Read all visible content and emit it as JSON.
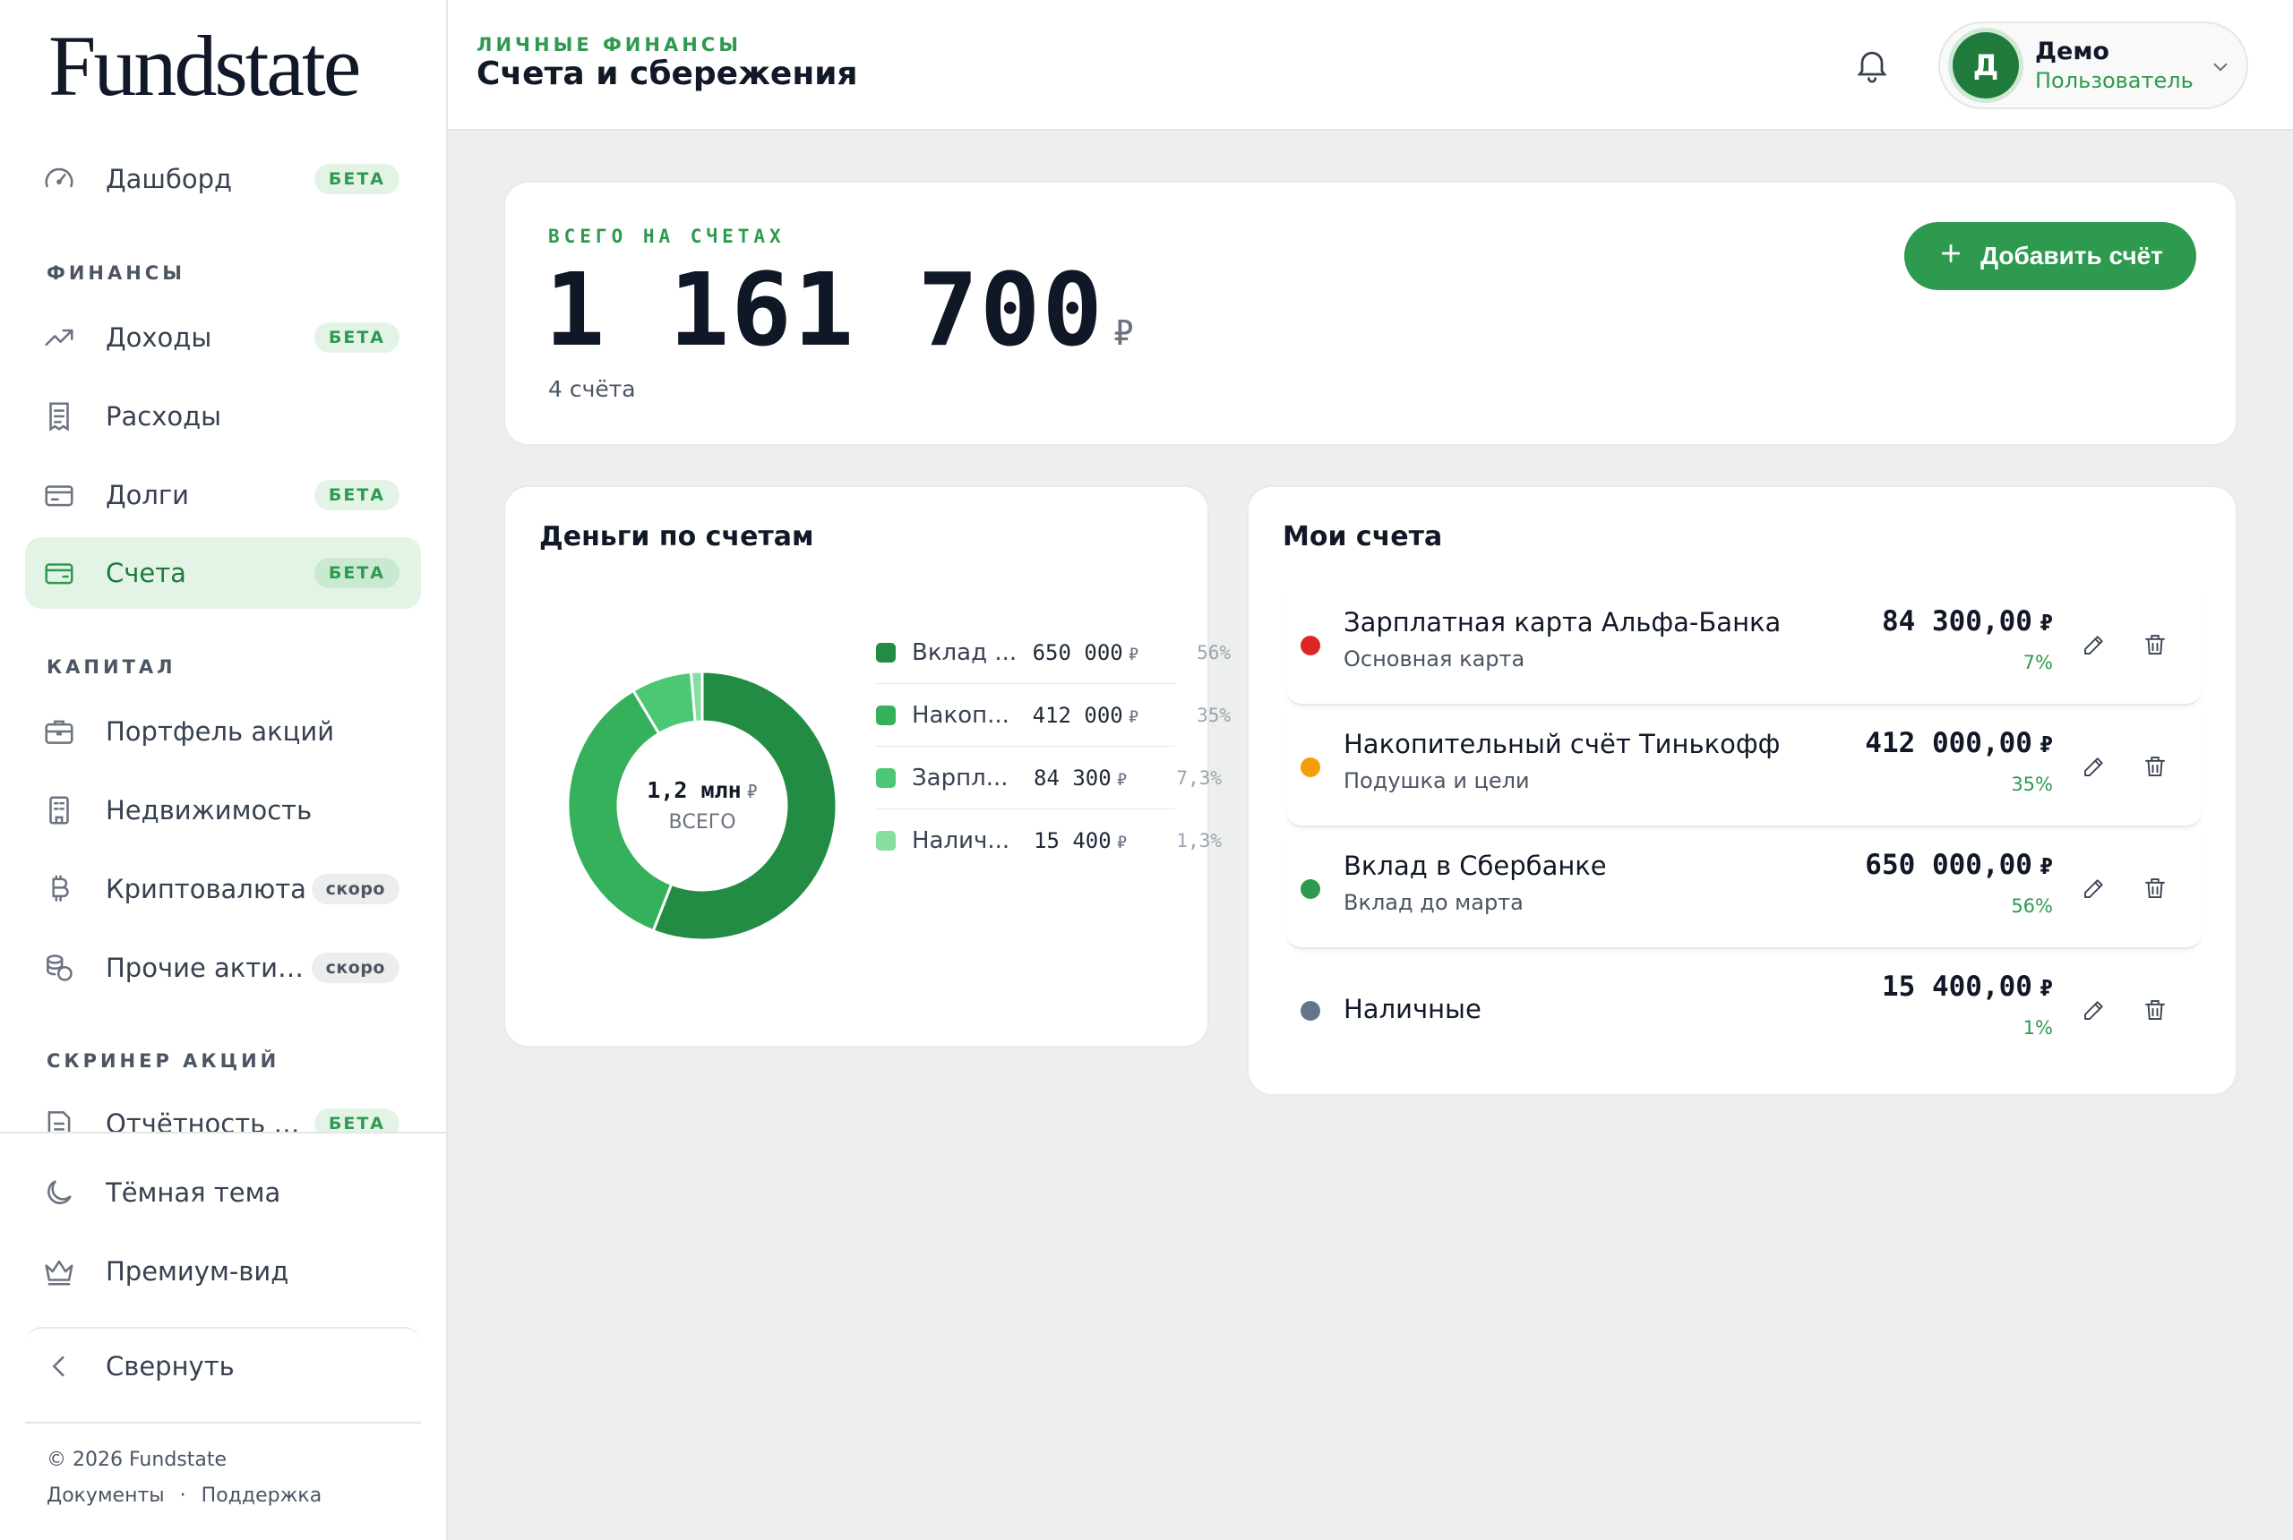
{
  "brand": {
    "logo_text": "Fundstate"
  },
  "sidebar": {
    "items": [
      {
        "label": "Дашборд",
        "badge": "БЕТА",
        "icon": "speedometer-icon"
      },
      {
        "section": "ФИНАНСЫ"
      },
      {
        "label": "Доходы",
        "badge": "БЕТА",
        "icon": "trending-up-icon"
      },
      {
        "label": "Расходы",
        "icon": "receipt-icon"
      },
      {
        "label": "Долги",
        "badge": "БЕТА",
        "icon": "credit-card-icon"
      },
      {
        "label": "Счета",
        "badge": "БЕТА",
        "icon": "wallet-icon",
        "active": true
      },
      {
        "section": "КАПИТАЛ"
      },
      {
        "label": "Портфель акций",
        "icon": "briefcase-icon"
      },
      {
        "label": "Недвижимость",
        "icon": "building-icon"
      },
      {
        "label": "Криптовалюта",
        "badge": "скоро",
        "icon": "bitcoin-icon"
      },
      {
        "label": "Прочие активы",
        "badge": "скоро",
        "icon": "coins-icon"
      },
      {
        "section": "СКРИНЕР АКЦИЙ"
      },
      {
        "label": "Отчётность компаний",
        "badge": "БЕТА",
        "icon": "report-icon"
      }
    ],
    "bottom": {
      "dark_theme": "Тёмная тема",
      "premium": "Премиум-вид",
      "collapse": "Свернуть"
    },
    "footer": {
      "copyright": "© 2026 Fundstate",
      "docs": "Документы",
      "dot": "·",
      "support": "Поддержка"
    }
  },
  "header": {
    "kicker": "ЛИЧНЫЕ ФИНАНСЫ",
    "title": "Счета и сбережения",
    "user": {
      "initial": "Д",
      "name": "Демо",
      "role": "Пользователь"
    }
  },
  "total": {
    "kicker": "ВСЕГО НА СЧЕТАХ",
    "value": "1 161 700",
    "currency": "₽",
    "subtitle": "4 счёта",
    "add_button": "Добавить счёт"
  },
  "distribution": {
    "title": "Деньги по счетам",
    "center_value": "1,2 млн",
    "center_currency": "₽",
    "center_label": "ВСЕГО"
  },
  "chart_data": {
    "type": "pie",
    "variant": "donut",
    "title": "Деньги по счетам",
    "categories": [
      "Вклад в Сбербанке",
      "Накопительный счёт Тинькофф",
      "Зарплатная карта Альфа-Банка",
      "Наличные"
    ],
    "legend_labels": [
      "Вклад ...",
      "Накоп...",
      "Зарпл...",
      "Налич..."
    ],
    "values": [
      650000,
      412000,
      84300,
      15400
    ],
    "value_labels": [
      "650 000",
      "412 000",
      "84 300",
      "15 400"
    ],
    "percent_labels": [
      "56%",
      "35%",
      "7,3%",
      "1,3%"
    ],
    "colors": [
      "#238c44",
      "#34b15a",
      "#4cc774",
      "#86dea0"
    ],
    "legend_position": "right"
  },
  "accounts": {
    "title": "Мои счета",
    "currency": "₽",
    "items": [
      {
        "name": "Зарплатная карта Альфа-Банка",
        "subtitle": "Основная карта",
        "amount": "84 300,00",
        "percent": "7%",
        "color": "#dc2626"
      },
      {
        "name": "Накопительный счёт Тинькофф",
        "subtitle": "Подушка и цели",
        "amount": "412 000,00",
        "percent": "35%",
        "color": "#f59e0b"
      },
      {
        "name": "Вклад в Сбербанке",
        "subtitle": "Вклад до марта",
        "amount": "650 000,00",
        "percent": "56%",
        "color": "#2e9a4f"
      },
      {
        "name": "Наличные",
        "subtitle": "",
        "amount": "15 400,00",
        "percent": "1%",
        "color": "#64748b"
      }
    ]
  }
}
